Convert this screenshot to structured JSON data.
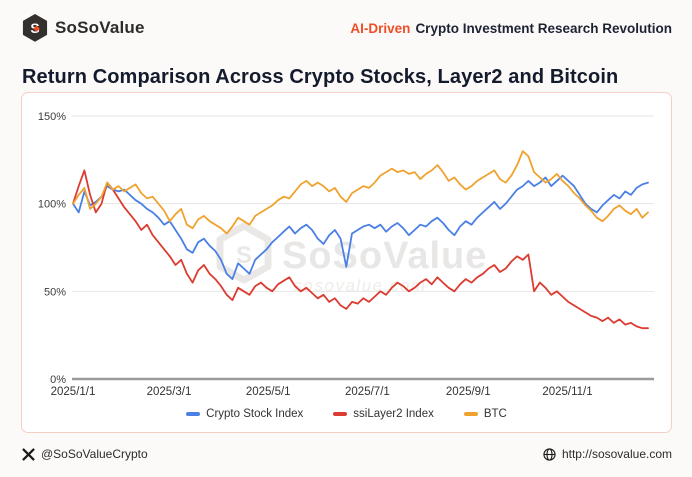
{
  "header": {
    "brand": "SoSoValue",
    "tagline_highlight": "AI-Driven",
    "tagline_rest": "Crypto Investment Research Revolution"
  },
  "title": "Return Comparison Across Crypto Stocks, Layer2 and Bitcoin",
  "watermark": {
    "brand": "SoSoValue",
    "domain": "sosovalue.com"
  },
  "footer": {
    "twitter_handle": "@SoSoValueCrypto",
    "website": "http://sosovalue.com"
  },
  "colors": {
    "accent_orange": "#EF4D26",
    "card_border": "#F4CFC4",
    "axis_line": "#9A9A9A",
    "gridline": "#E6E6E6",
    "series_blue": "#4A80E4",
    "series_red": "#DC3B31",
    "series_orange": "#F0A22F"
  },
  "chart_data": {
    "type": "line",
    "title": "Return Comparison Across Crypto Stocks, Layer2 and Bitcoin",
    "grid": true,
    "legend_position": "bottom",
    "ylim": [
      0,
      150
    ],
    "y_ticks": [
      "0%",
      "50%",
      "100%",
      "150%"
    ],
    "y_tick_values": [
      0,
      50,
      100,
      150
    ],
    "x_tick_labels": [
      "2025/1/1",
      "2025/3/1",
      "2025/5/1",
      "2025/7/1",
      "2025/9/1",
      "2025/11/1"
    ],
    "x_tick_days": [
      0,
      59,
      120,
      181,
      243,
      304
    ],
    "x_range_days": [
      0,
      353.5
    ],
    "sample_interval_days": 3.5,
    "unit": "percent_return_indexed_to_100",
    "series": [
      {
        "name": "Crypto Stock Index",
        "color": "#4A80E4",
        "values": [
          100,
          95,
          107,
          99,
          101,
          104,
          110,
          108,
          107,
          108,
          105,
          102,
          100,
          97,
          95,
          92,
          88,
          90,
          85,
          80,
          74,
          72,
          78,
          80,
          76,
          73,
          68,
          60,
          57,
          66,
          63,
          60,
          68,
          71,
          74,
          78,
          81,
          84,
          87,
          83,
          86,
          88,
          85,
          80,
          77,
          82,
          85,
          80,
          64,
          83,
          85,
          87,
          88,
          86,
          88,
          84,
          87,
          89,
          86,
          82,
          85,
          88,
          87,
          90,
          92,
          89,
          85,
          82,
          87,
          90,
          88,
          92,
          95,
          98,
          101,
          97,
          100,
          104,
          108,
          110,
          113,
          110,
          112,
          115,
          110,
          113,
          116,
          113,
          110,
          105,
          100,
          97,
          95,
          99,
          102,
          105,
          103,
          107,
          105,
          109,
          111,
          112
        ]
      },
      {
        "name": "ssiLayer2 Index",
        "color": "#DC3B31",
        "values": [
          100,
          110,
          119,
          105,
          95,
          100,
          112,
          108,
          103,
          98,
          94,
          90,
          85,
          88,
          82,
          78,
          74,
          70,
          65,
          68,
          60,
          55,
          62,
          65,
          60,
          57,
          53,
          48,
          45,
          52,
          50,
          48,
          53,
          55,
          52,
          50,
          54,
          56,
          58,
          53,
          50,
          52,
          49,
          46,
          48,
          44,
          46,
          42,
          40,
          44,
          43,
          46,
          44,
          47,
          50,
          48,
          52,
          55,
          53,
          50,
          52,
          55,
          57,
          54,
          58,
          55,
          52,
          50,
          54,
          57,
          55,
          58,
          60,
          63,
          65,
          61,
          63,
          67,
          70,
          68,
          71,
          50,
          55,
          52,
          48,
          50,
          47,
          44,
          42,
          40,
          38,
          36,
          35,
          33,
          35,
          32,
          34,
          31,
          32,
          30,
          29,
          29
        ]
      },
      {
        "name": "BTC",
        "color": "#F0A22F",
        "values": [
          100,
          105,
          109,
          97,
          100,
          104,
          112,
          108,
          110,
          107,
          109,
          111,
          106,
          103,
          104,
          100,
          96,
          90,
          94,
          97,
          88,
          86,
          91,
          93,
          90,
          88,
          86,
          83,
          87,
          92,
          90,
          88,
          93,
          95,
          97,
          99,
          102,
          104,
          103,
          107,
          111,
          113,
          110,
          112,
          110,
          107,
          109,
          104,
          101,
          106,
          108,
          110,
          109,
          112,
          116,
          118,
          120,
          118,
          119,
          117,
          118,
          114,
          117,
          119,
          122,
          118,
          113,
          115,
          111,
          108,
          110,
          113,
          115,
          117,
          119,
          114,
          112,
          116,
          122,
          130,
          127,
          118,
          115,
          112,
          114,
          117,
          113,
          110,
          106,
          103,
          99,
          96,
          92,
          90,
          93,
          97,
          99,
          96,
          94,
          97,
          92,
          95
        ]
      }
    ]
  }
}
